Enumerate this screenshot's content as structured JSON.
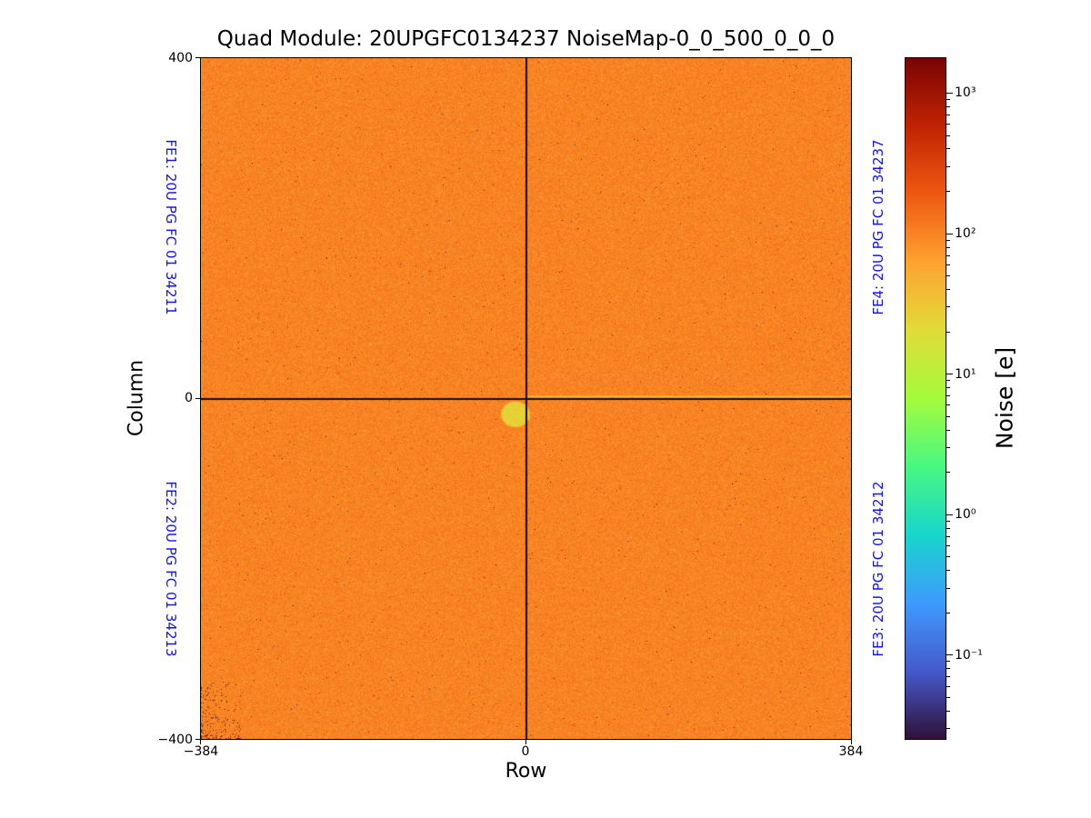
{
  "figure": {
    "title": "Quad Module: 20UPGFC0134237 NoiseMap-0_0_500_0_0_0",
    "xlabel": "Row",
    "ylabel": "Column",
    "x_ticks": [
      "−384",
      "0",
      "384"
    ],
    "y_ticks": [
      "400",
      "0",
      "−400"
    ],
    "fe_labels": {
      "fe1": "FE1: 20U PG FC 01 34211",
      "fe2": "FE2: 20U PG FC 01 34213",
      "fe3": "FE3: 20U PG FC 01 34212",
      "fe4": "FE4: 20U PG FC 01 34237"
    },
    "colorbar": {
      "label": "Noise [e]",
      "ticks": [
        "10³",
        "10²",
        "10¹",
        "10⁰",
        "10⁻¹"
      ]
    },
    "colors": {
      "fe_label_blue": "#1414dd",
      "background_orange": "#f88424",
      "blob_yellow": "#ecd154",
      "plot_frame": "#000000"
    }
  },
  "chart_data": {
    "type": "heatmap",
    "title": "Quad Module: 20UPGFC0134237 NoiseMap-0_0_500_0_0_0",
    "xlabel": "Row",
    "ylabel": "Column",
    "x_range": [
      -384,
      384
    ],
    "y_range": [
      -400,
      400
    ],
    "x_tick_values": [
      -384,
      0,
      384
    ],
    "y_tick_values": [
      -400,
      0,
      400
    ],
    "grid": false,
    "color_scale": "log",
    "colormap": "turbo",
    "colorbar_label": "Noise [e]",
    "colorbar_ticks": [
      1000,
      100,
      10,
      1,
      0.1
    ],
    "colorbar_range": [
      0.025,
      1800
    ],
    "background_value_e": 100,
    "quadrants": [
      {
        "chip": "FE1",
        "label": "FE1: 20U PG FC 01 34211",
        "position": "top-left"
      },
      {
        "chip": "FE2",
        "label": "FE2: 20U PG FC 01 34213",
        "position": "bottom-left"
      },
      {
        "chip": "FE3",
        "label": "FE3: 20U PG FC 01 34212",
        "position": "bottom-right"
      },
      {
        "chip": "FE4",
        "label": "FE4: 20U PG FC 01 34237",
        "position": "top-right"
      }
    ],
    "chip_gap_cross": {
      "row": 0,
      "col": 0
    },
    "blob": {
      "row": -13,
      "col": -18,
      "row_radius": 18,
      "col_radius": 16,
      "value_e": 25
    },
    "hot_line": {
      "col": 2,
      "row_from": 0,
      "row_to": 384,
      "value_e": 35
    },
    "dead_cluster": {
      "corner": "bottom-left",
      "row_extent": 50,
      "col_extent": 70
    }
  }
}
